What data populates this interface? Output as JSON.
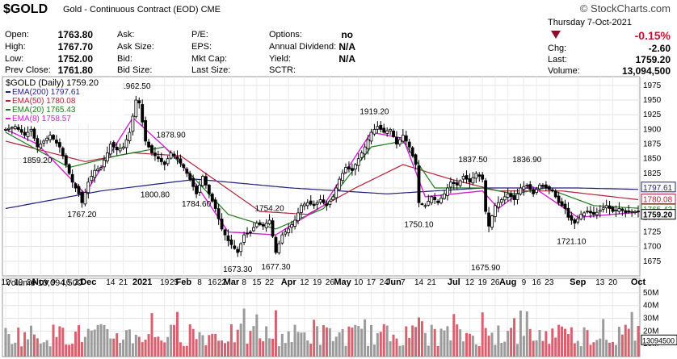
{
  "header": {
    "ticker": "$GOLD",
    "contract": "Gold - Continuous Contract (EOD)",
    "exchange": "CME",
    "logo": "© StockCharts.com",
    "date": "Thursday 7-Oct-2021",
    "change_pct": "-0.15%",
    "direction_icon": "down-triangle-icon"
  },
  "quote": {
    "open_label": "Open:",
    "open": "1763.80",
    "high_label": "High:",
    "high": "1767.70",
    "low_label": "Low:",
    "low": "1752.00",
    "prev_close_label": "Prev Close:",
    "prev_close": "1761.80",
    "ask_label": "Ask:",
    "ask_size_label": "Ask Size:",
    "bid_label": "Bid:",
    "bid_size_label": "Bid Size:",
    "pe_label": "P/E:",
    "eps_label": "EPS:",
    "mkt_cap_label": "Mkt Cap:",
    "last_size_label": "Last Size:",
    "options_label": "Options:",
    "options": "no",
    "annual_dividend_label": "Annual Dividend:",
    "annual_dividend": "N/A",
    "yield_label": "Yield:",
    "yield": "N/A",
    "sctr_label": "SCTR:",
    "chg_label": "Chg:",
    "chg": "-2.60",
    "last_label": "Last:",
    "last": "1759.20",
    "volume_label": "Volume:",
    "volume": "13,094,500"
  },
  "chart_data": {
    "type": "line",
    "legend": [
      {
        "text": "$GOLD (Daily) 1759.20",
        "color": "#000000"
      },
      {
        "text": "EMA(200) 1797.61",
        "color": "#1f1f7a"
      },
      {
        "text": "EMA(50) 1780.08",
        "color": "#b0223a"
      },
      {
        "text": "EMA(20) 1765.43",
        "color": "#1a7a1a"
      },
      {
        "text": "EMA(8) 1758.57",
        "color": "#d21fd2"
      }
    ],
    "y_ticks": [
      1675,
      1700,
      1725,
      1750,
      1775,
      1800,
      1825,
      1850,
      1875,
      1900,
      1925,
      1950,
      1975
    ],
    "ylim": [
      1650,
      1990
    ],
    "right_labels": [
      {
        "text": "1797.61",
        "value": 1797.61,
        "color": "#1f1f7a"
      },
      {
        "text": "1780.08",
        "value": 1780.08,
        "color": "#b0223a"
      },
      {
        "text": "1765.43",
        "value": 1765.43,
        "color": "#1a7a1a"
      },
      {
        "text": "1759.20",
        "value": 1759.2,
        "color": "#000000"
      }
    ],
    "annotations": [
      {
        "text": "1962.50",
        "i": 41,
        "v": 1962.5,
        "pos": "above"
      },
      {
        "text": "1859.20",
        "i": 10,
        "v": 1859.2,
        "pos": "below"
      },
      {
        "text": "1767.20",
        "i": 24,
        "v": 1767.2,
        "pos": "below"
      },
      {
        "text": "1878.90",
        "i": 52,
        "v": 1878.9,
        "pos": "above"
      },
      {
        "text": "1800.80",
        "i": 47,
        "v": 1800.8,
        "pos": "below"
      },
      {
        "text": "1784.60",
        "i": 60,
        "v": 1784.6,
        "pos": "below"
      },
      {
        "text": "1754.20",
        "i": 83,
        "v": 1754.2,
        "pos": "above"
      },
      {
        "text": "1673.30",
        "i": 73,
        "v": 1673.3,
        "pos": "below"
      },
      {
        "text": "1677.30",
        "i": 85,
        "v": 1677.3,
        "pos": "below"
      },
      {
        "text": "1919.20",
        "i": 116,
        "v": 1919.2,
        "pos": "above"
      },
      {
        "text": "1750.10",
        "i": 130,
        "v": 1750.1,
        "pos": "below"
      },
      {
        "text": "1837.50",
        "i": 147,
        "v": 1837.5,
        "pos": "above"
      },
      {
        "text": "1836.90",
        "i": 164,
        "v": 1836.9,
        "pos": "above"
      },
      {
        "text": "1675.90",
        "i": 151,
        "v": 1675.9,
        "pos": "below"
      },
      {
        "text": "1721.10",
        "i": 178,
        "v": 1721.1,
        "pos": "below"
      }
    ],
    "x_labels": [
      {
        "text": "12",
        "i": 0,
        "bold": false
      },
      {
        "text": "19",
        "i": 4,
        "bold": false
      },
      {
        "text": "26",
        "i": 8,
        "bold": false
      },
      {
        "text": "Nov",
        "i": 11,
        "bold": true
      },
      {
        "text": "9",
        "i": 15,
        "bold": false
      },
      {
        "text": "16",
        "i": 19,
        "bold": false
      },
      {
        "text": "23",
        "i": 23,
        "bold": false
      },
      {
        "text": "Dec",
        "i": 26,
        "bold": true
      },
      {
        "text": "14",
        "i": 33,
        "bold": false
      },
      {
        "text": "21",
        "i": 37,
        "bold": false
      },
      {
        "text": "2021",
        "i": 43,
        "bold": true
      },
      {
        "text": "19",
        "i": 50,
        "bold": false
      },
      {
        "text": "25",
        "i": 53,
        "bold": false
      },
      {
        "text": "Feb",
        "i": 56,
        "bold": true
      },
      {
        "text": "8",
        "i": 61,
        "bold": false
      },
      {
        "text": "16",
        "i": 65,
        "bold": false
      },
      {
        "text": "22",
        "i": 68,
        "bold": false
      },
      {
        "text": "Mar",
        "i": 71,
        "bold": true
      },
      {
        "text": "8",
        "i": 75,
        "bold": false
      },
      {
        "text": "15",
        "i": 79,
        "bold": false
      },
      {
        "text": "22",
        "i": 83,
        "bold": false
      },
      {
        "text": "Apr",
        "i": 89,
        "bold": true
      },
      {
        "text": "12",
        "i": 94,
        "bold": false
      },
      {
        "text": "19",
        "i": 98,
        "bold": false
      },
      {
        "text": "26",
        "i": 102,
        "bold": false
      },
      {
        "text": "May",
        "i": 106,
        "bold": true
      },
      {
        "text": "10",
        "i": 111,
        "bold": false
      },
      {
        "text": "17",
        "i": 115,
        "bold": false
      },
      {
        "text": "24",
        "i": 119,
        "bold": false
      },
      {
        "text": "Jun",
        "i": 122,
        "bold": true
      },
      {
        "text": "7",
        "i": 125,
        "bold": false
      },
      {
        "text": "14",
        "i": 130,
        "bold": false
      },
      {
        "text": "21",
        "i": 134,
        "bold": false
      },
      {
        "text": "Jul",
        "i": 141,
        "bold": true
      },
      {
        "text": "12",
        "i": 146,
        "bold": false
      },
      {
        "text": "19",
        "i": 150,
        "bold": false
      },
      {
        "text": "26",
        "i": 154,
        "bold": false
      },
      {
        "text": "Aug",
        "i": 158,
        "bold": true
      },
      {
        "text": "9",
        "i": 163,
        "bold": false
      },
      {
        "text": "16",
        "i": 167,
        "bold": false
      },
      {
        "text": "23",
        "i": 171,
        "bold": false
      },
      {
        "text": "Sep",
        "i": 180,
        "bold": true
      },
      {
        "text": "13",
        "i": 187,
        "bold": false
      },
      {
        "text": "20",
        "i": 191,
        "bold": false
      },
      {
        "text": "Oct",
        "i": 199,
        "bold": true
      }
    ],
    "close_anchors": [
      [
        0,
        1900
      ],
      [
        3,
        1905
      ],
      [
        6,
        1890
      ],
      [
        8,
        1900
      ],
      [
        10,
        1870
      ],
      [
        12,
        1880
      ],
      [
        14,
        1890
      ],
      [
        17,
        1870
      ],
      [
        19,
        1840
      ],
      [
        21,
        1810
      ],
      [
        23,
        1790
      ],
      [
        24,
        1775
      ],
      [
        26,
        1810
      ],
      [
        28,
        1830
      ],
      [
        30,
        1835
      ],
      [
        32,
        1860
      ],
      [
        33,
        1875
      ],
      [
        35,
        1865
      ],
      [
        37,
        1870
      ],
      [
        39,
        1895
      ],
      [
        41,
        1950
      ],
      [
        42,
        1945
      ],
      [
        44,
        1880
      ],
      [
        46,
        1860
      ],
      [
        48,
        1850
      ],
      [
        50,
        1840
      ],
      [
        52,
        1860
      ],
      [
        54,
        1850
      ],
      [
        56,
        1835
      ],
      [
        58,
        1815
      ],
      [
        60,
        1790
      ],
      [
        62,
        1820
      ],
      [
        64,
        1790
      ],
      [
        66,
        1765
      ],
      [
        68,
        1730
      ],
      [
        70,
        1710
      ],
      [
        73,
        1690
      ],
      [
        75,
        1720
      ],
      [
        77,
        1725
      ],
      [
        79,
        1740
      ],
      [
        81,
        1735
      ],
      [
        83,
        1745
      ],
      [
        85,
        1690
      ],
      [
        87,
        1720
      ],
      [
        89,
        1730
      ],
      [
        91,
        1745
      ],
      [
        93,
        1770
      ],
      [
        95,
        1775
      ],
      [
        97,
        1770
      ],
      [
        99,
        1780
      ],
      [
        101,
        1770
      ],
      [
        103,
        1785
      ],
      [
        105,
        1815
      ],
      [
        107,
        1835
      ],
      [
        109,
        1830
      ],
      [
        111,
        1850
      ],
      [
        113,
        1870
      ],
      [
        115,
        1895
      ],
      [
        117,
        1905
      ],
      [
        119,
        1895
      ],
      [
        121,
        1900
      ],
      [
        123,
        1875
      ],
      [
        125,
        1890
      ],
      [
        127,
        1870
      ],
      [
        129,
        1840
      ],
      [
        130,
        1775
      ],
      [
        132,
        1770
      ],
      [
        134,
        1785
      ],
      [
        136,
        1775
      ],
      [
        138,
        1790
      ],
      [
        140,
        1810
      ],
      [
        142,
        1805
      ],
      [
        144,
        1820
      ],
      [
        146,
        1810
      ],
      [
        148,
        1825
      ],
      [
        150,
        1815
      ],
      [
        151,
        1760
      ],
      [
        152,
        1735
      ],
      [
        154,
        1770
      ],
      [
        156,
        1780
      ],
      [
        158,
        1790
      ],
      [
        160,
        1780
      ],
      [
        162,
        1800
      ],
      [
        164,
        1805
      ],
      [
        166,
        1790
      ],
      [
        168,
        1805
      ],
      [
        170,
        1800
      ],
      [
        172,
        1795
      ],
      [
        174,
        1775
      ],
      [
        176,
        1765
      ],
      [
        177,
        1750
      ],
      [
        179,
        1740
      ],
      [
        181,
        1755
      ],
      [
        183,
        1760
      ],
      [
        185,
        1755
      ],
      [
        187,
        1762
      ],
      [
        189,
        1770
      ],
      [
        191,
        1760
      ],
      [
        193,
        1765
      ],
      [
        195,
        1758
      ],
      [
        197,
        1760
      ],
      [
        199,
        1759.2
      ]
    ],
    "ema200_anchors": [
      [
        0,
        1765
      ],
      [
        30,
        1795
      ],
      [
        60,
        1815
      ],
      [
        90,
        1800
      ],
      [
        120,
        1790
      ],
      [
        150,
        1800
      ],
      [
        180,
        1800
      ],
      [
        199,
        1797.61
      ]
    ],
    "ema50_anchors": [
      [
        0,
        1880
      ],
      [
        25,
        1845
      ],
      [
        40,
        1860
      ],
      [
        55,
        1855
      ],
      [
        80,
        1760
      ],
      [
        95,
        1755
      ],
      [
        110,
        1800
      ],
      [
        125,
        1840
      ],
      [
        140,
        1815
      ],
      [
        155,
        1795
      ],
      [
        175,
        1795
      ],
      [
        199,
        1780.08
      ]
    ],
    "ema20_anchors": [
      [
        0,
        1895
      ],
      [
        20,
        1835
      ],
      [
        35,
        1855
      ],
      [
        50,
        1870
      ],
      [
        70,
        1755
      ],
      [
        85,
        1730
      ],
      [
        100,
        1765
      ],
      [
        115,
        1870
      ],
      [
        125,
        1880
      ],
      [
        135,
        1800
      ],
      [
        150,
        1800
      ],
      [
        160,
        1790
      ],
      [
        170,
        1800
      ],
      [
        185,
        1770
      ],
      [
        199,
        1765.43
      ]
    ],
    "ema8_anchors": [
      [
        0,
        1900
      ],
      [
        10,
        1875
      ],
      [
        25,
        1790
      ],
      [
        40,
        1920
      ],
      [
        55,
        1845
      ],
      [
        70,
        1725
      ],
      [
        85,
        1720
      ],
      [
        100,
        1770
      ],
      [
        115,
        1895
      ],
      [
        125,
        1885
      ],
      [
        132,
        1785
      ],
      [
        150,
        1795
      ],
      [
        155,
        1765
      ],
      [
        165,
        1805
      ],
      [
        180,
        1750
      ],
      [
        199,
        1758.57
      ]
    ],
    "volume": {
      "title": "Volume 13,094,500",
      "y_ticks": [
        "50M",
        "40M",
        "30M",
        "20M",
        "10M"
      ],
      "tick_values": [
        50,
        40,
        30,
        20,
        10
      ],
      "ylim": [
        0,
        55
      ],
      "last_label": "13094500",
      "last_value": 13.0945
    },
    "n_bars": 200
  }
}
